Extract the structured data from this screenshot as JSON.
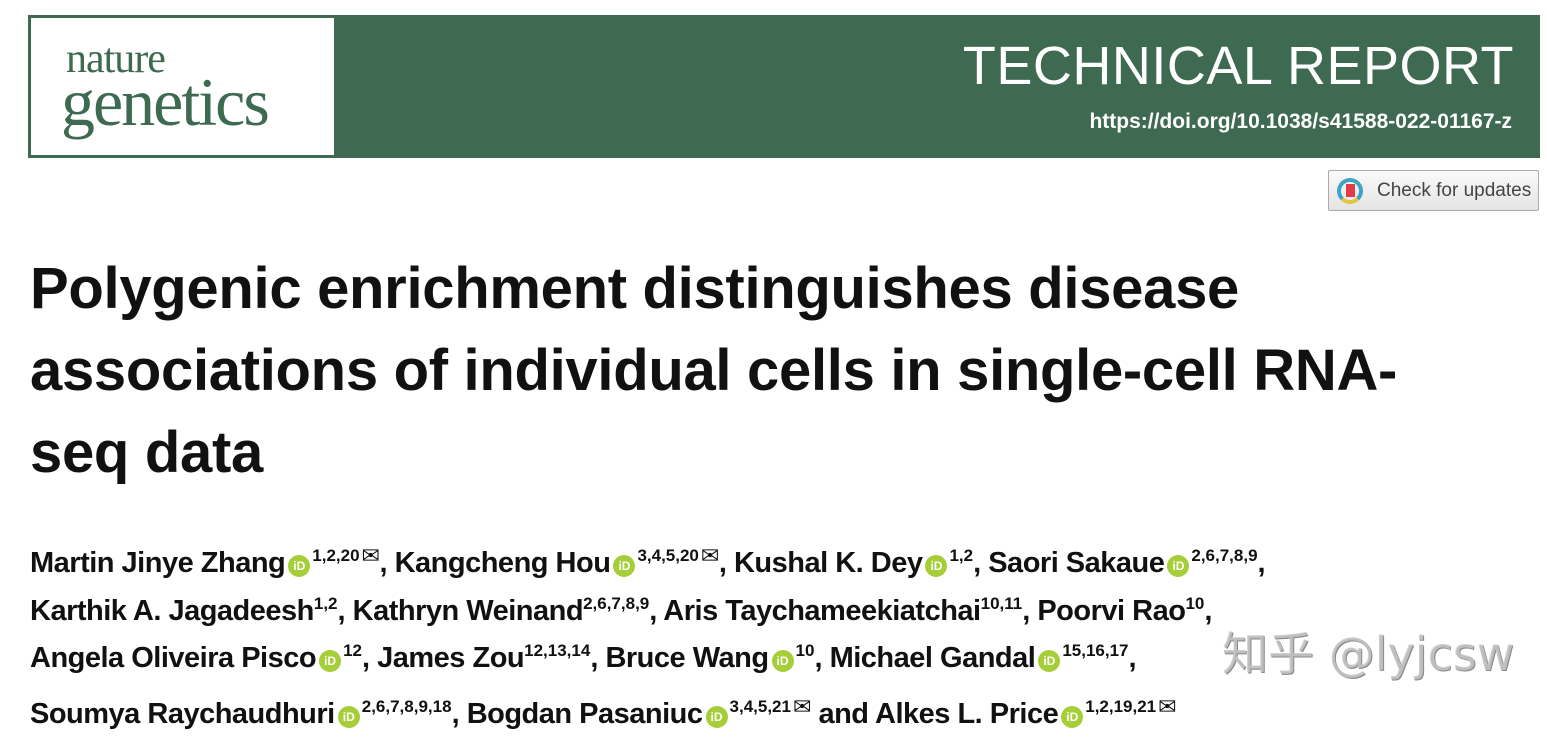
{
  "header": {
    "journal_line1": "nature",
    "journal_line2": "genetics",
    "article_type": "TECHNICAL REPORT",
    "doi": "https://doi.org/10.1038/s41588-022-01167-z",
    "brand_color": "#3e6a51"
  },
  "check_updates": {
    "label": "Check for updates"
  },
  "title": "Polygenic enrichment distinguishes disease associations of individual cells in single-cell RNA-seq data",
  "authors": [
    [
      {
        "name": "Martin Jinye Zhang",
        "orcid": true,
        "sup": "1,2,20",
        "email": true,
        "sep": ", "
      },
      {
        "name": "Kangcheng Hou",
        "orcid": true,
        "sup": "3,4,5,20",
        "email": true,
        "sep": ", "
      },
      {
        "name": "Kushal K. Dey",
        "orcid": true,
        "sup": "1,2",
        "sep": ", "
      },
      {
        "name": "Saori Sakaue",
        "orcid": true,
        "sup": "2,6,7,8,9",
        "sep": ","
      }
    ],
    [
      {
        "name": "Karthik A. Jagadeesh",
        "sup": "1,2",
        "sep": ", "
      },
      {
        "name": "Kathryn Weinand",
        "sup": "2,6,7,8,9",
        "sep": ", "
      },
      {
        "name": "Aris Taychameekiatchai",
        "sup": "10,11",
        "sep": ", "
      },
      {
        "name": "Poorvi Rao",
        "sup": "10",
        "sep": ","
      }
    ],
    [
      {
        "name": "Angela Oliveira Pisco",
        "orcid": true,
        "sup": "12",
        "sep": ", "
      },
      {
        "name": "James Zou",
        "sup": "12,13,14",
        "sep": ", "
      },
      {
        "name": "Bruce Wang",
        "orcid": true,
        "sup": "10",
        "sep": ", "
      },
      {
        "name": "Michael Gandal",
        "orcid": true,
        "sup": "15,16,17",
        "sep": ","
      }
    ],
    [
      {
        "name": "Soumya Raychaudhuri",
        "orcid": true,
        "sup": "2,6,7,8,9,18",
        "sep": ", "
      },
      {
        "name": "Bogdan Pasaniuc",
        "orcid": true,
        "sup": "3,4,5,21",
        "email": true,
        "sep": " and "
      },
      {
        "name": "Alkes L. Price",
        "orcid": true,
        "sup": "1,2,19,21",
        "email": true,
        "sep": ""
      }
    ]
  ],
  "watermark": "知乎 @lyjcsw"
}
